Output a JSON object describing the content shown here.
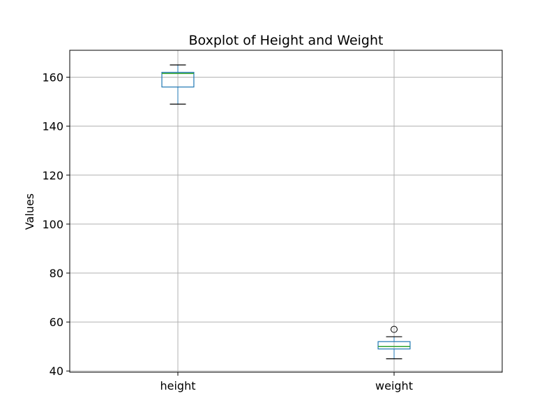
{
  "chart_data": {
    "type": "boxplot",
    "title": "Boxplot of Height and Weight",
    "xlabel": "",
    "ylabel": "Values",
    "ylim": [
      39.5,
      171
    ],
    "yticks": [
      40,
      60,
      80,
      100,
      120,
      140,
      160
    ],
    "grid": true,
    "categories": [
      "height",
      "weight"
    ],
    "boxes": [
      {
        "category": "height",
        "whislo": 149,
        "q1": 156,
        "med": 161.5,
        "q3": 162,
        "whishi": 165,
        "fliers": []
      },
      {
        "category": "weight",
        "whislo": 45,
        "q1": 49,
        "med": 50,
        "q3": 52,
        "whishi": 54,
        "fliers": [
          57
        ]
      }
    ],
    "colors": {
      "box": "#1f77b4",
      "median": "#2ca02c",
      "whisker": "#000000",
      "grid": "#b0b0b0"
    }
  }
}
